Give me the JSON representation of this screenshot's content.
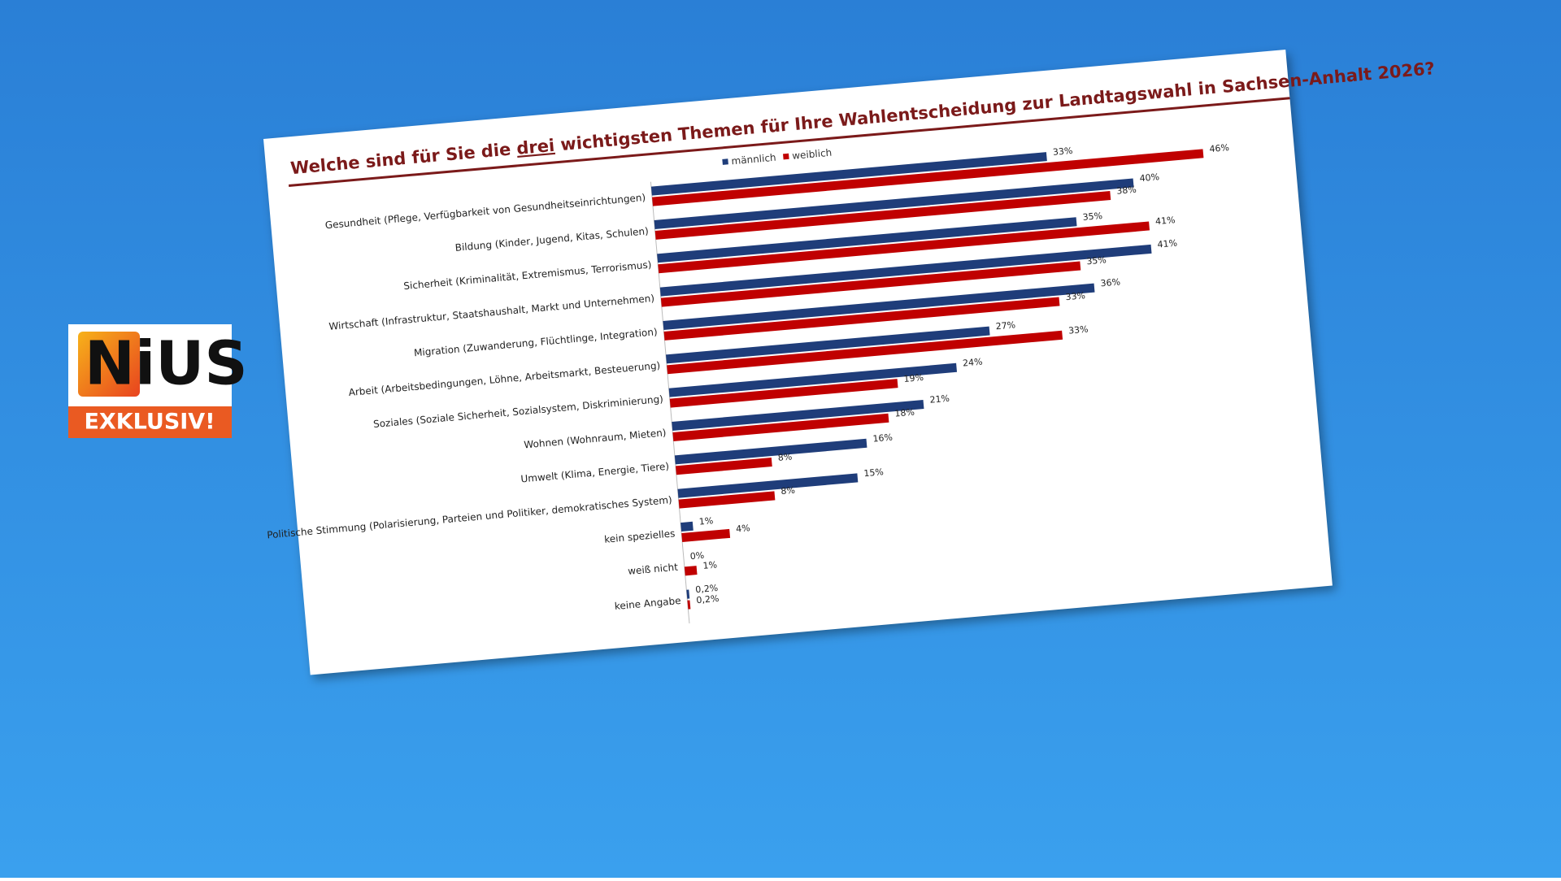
{
  "logo": {
    "name": "NiUS",
    "badge": "EXKLUSIV!"
  },
  "chart_data": {
    "type": "barh",
    "title": [
      "Welche sind für Sie die",
      "drei",
      "wichtigsten Themen für Ihre Wahlentscheidung zur Landtagswahl in Sachsen-Anhalt 2026?"
    ],
    "categories": [
      "Gesundheit (Pflege, Verfügbarkeit von Gesundheitseinrichtungen)",
      "Bildung (Kinder, Jugend, Kitas, Schulen)",
      "Sicherheit (Kriminalität, Extremismus, Terrorismus)",
      "Wirtschaft (Infrastruktur, Staatshaushalt, Markt und Unternehmen)",
      "Migration (Zuwanderung, Flüchtlinge, Integration)",
      "Arbeit (Arbeitsbedingungen, Löhne, Arbeitsmarkt, Besteuerung)",
      "Soziales (Soziale Sicherheit, Sozialsystem, Diskriminierung)",
      "Wohnen (Wohnraum, Mieten)",
      "Umwelt (Klima, Energie, Tiere)",
      "Politische Stimmung (Polarisierung, Parteien und Politiker, demokratisches System)",
      "kein spezielles",
      "weiß nicht",
      "keine Angabe"
    ],
    "series": [
      {
        "name": "männlich",
        "color": "#1f3d7a",
        "values": [
          33,
          40,
          35,
          41,
          36,
          27,
          24,
          21,
          16,
          15,
          1,
          0,
          0.2
        ],
        "value_labels": [
          "33%",
          "40%",
          "35%",
          "41%",
          "36%",
          "27%",
          "24%",
          "21%",
          "16%",
          "15%",
          "1%",
          "0%",
          "0,2%"
        ]
      },
      {
        "name": "weiblich",
        "color": "#c00000",
        "values": [
          46,
          38,
          41,
          35,
          33,
          33,
          19,
          18,
          8,
          8,
          4,
          1,
          0.2
        ],
        "value_labels": [
          "46%",
          "38%",
          "41%",
          "35%",
          "33%",
          "33%",
          "19%",
          "18%",
          "8%",
          "8%",
          "4%",
          "1%",
          "0,2%"
        ]
      }
    ],
    "legend": "top"
  }
}
